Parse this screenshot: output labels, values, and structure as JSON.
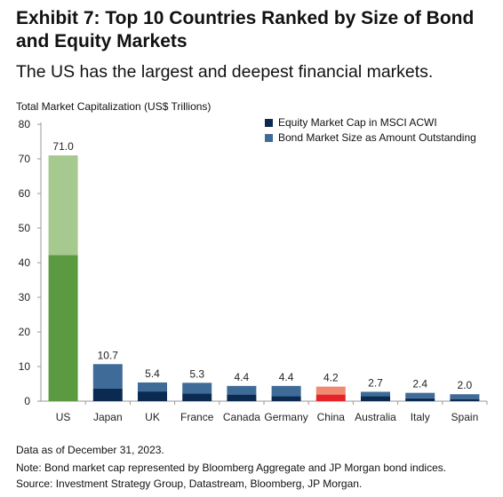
{
  "title": "Exhibit 7: Top 10 Countries Ranked by Size of Bond and Equity Markets",
  "subtitle": "The US has the largest and deepest financial markets.",
  "footnotes": [
    "Data as of December 31, 2023.",
    "Note: Bond market cap represented by Bloomberg Aggregate and JP Morgan bond indices.",
    "Source: Investment Strategy Group, Datastream, Bloomberg, JP Morgan."
  ],
  "chart_data": {
    "type": "bar",
    "stacked": true,
    "ylabel": "Total Market Capitalization (US$ Trillions)",
    "xlabel": "",
    "ylim": [
      0,
      80
    ],
    "yticks": [
      0,
      10,
      20,
      30,
      40,
      50,
      60,
      70,
      80
    ],
    "grid": false,
    "legend_position": "top-right",
    "categories": [
      "US",
      "Japan",
      "UK",
      "France",
      "Canada",
      "Germany",
      "China",
      "Australia",
      "Italy",
      "Spain"
    ],
    "totals": [
      71.0,
      10.7,
      5.4,
      5.3,
      4.4,
      4.4,
      4.2,
      2.7,
      2.4,
      2.0
    ],
    "total_labels": [
      "71.0",
      "10.7",
      "5.4",
      "5.3",
      "4.4",
      "4.4",
      "4.2",
      "2.7",
      "2.4",
      "2.0"
    ],
    "series": [
      {
        "name": "Equity Market Cap in MSCI ACWI",
        "color": "#0b2a52",
        "values": [
          42.2,
          3.6,
          2.8,
          2.2,
          1.9,
          1.4,
          1.9,
          1.4,
          0.8,
          0.6
        ]
      },
      {
        "name": "Bond Market Size as Amount Outstanding",
        "color": "#3f6b98",
        "values": [
          28.8,
          7.1,
          2.6,
          3.1,
          2.5,
          3.0,
          2.3,
          1.3,
          1.6,
          1.4
        ]
      }
    ],
    "highlight_colors": {
      "US": [
        "#5c9a42",
        "#a6c98f"
      ],
      "China": [
        "#e5242a",
        "#f08a70"
      ]
    }
  }
}
